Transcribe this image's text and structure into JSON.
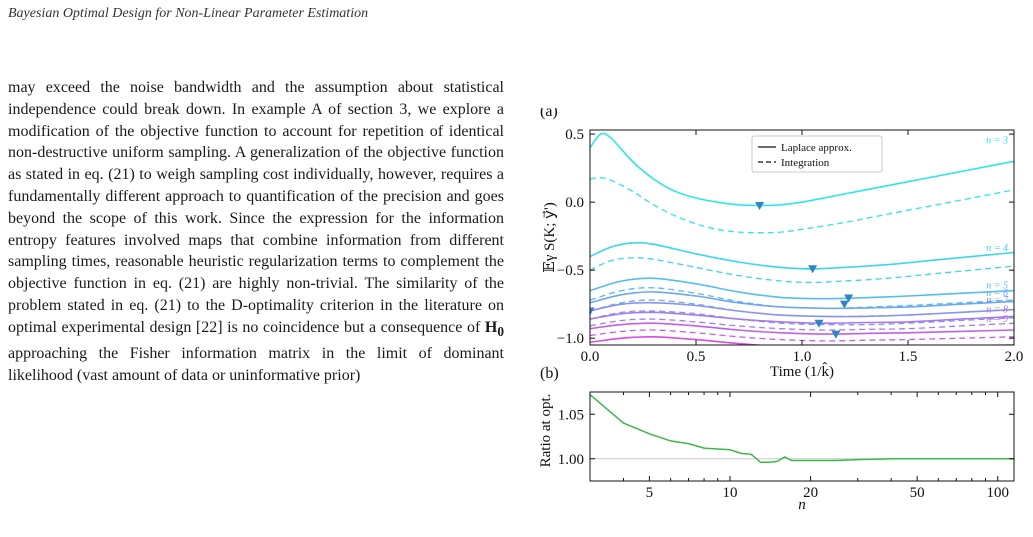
{
  "header": {
    "running_title": "Bayesian Optimal Design for Non-Linear Parameter Estimation"
  },
  "body": {
    "paragraph": [
      "may exceed the noise bandwidth and the assumption about statistical independence could break down. In example A of section 3, we explore a modification of the objective function to account for repetition of identical non-destructive uniform sampling. A generalization of the objective function as stated in eq. (21) to weigh sampling cost individually, however, requires a fundamentally different approach to quantification of the precision and goes beyond the scope of this work. Since the expression for the information entropy features involved maps that combine information from different sampling times, reasonable heuristic regularization terms to complement the objective function in eq. (21) are highly non-trivial. The similarity of the problem stated in eq. (21) to the D-optimality criterion in the literature on optimal experimental design [22] is no coincidence but a consequence of ",
      "H",
      " approaching the Fisher information matrix in the limit of dominant likelihood (vast amount of data or uninformative prior)"
    ]
  },
  "chart_data": [
    {
      "type": "line",
      "panel_label": "(a)",
      "xlabel": "Time (1/k̂)",
      "ylabel": "𝔼γ S(K; y⃗')",
      "xlim": [
        0.0,
        2.0
      ],
      "ylim": [
        -1.05,
        0.53
      ],
      "xticks": [
        "0.0",
        "0.5",
        "1.0",
        "1.5",
        "2.0"
      ],
      "yticks": [
        "0.5",
        "0.0",
        "−0.5",
        "−1.0"
      ],
      "legend": {
        "position": "top-center",
        "entries": [
          "Laplace approx.",
          "Integration"
        ]
      },
      "series": [
        {
          "name": "n = 3",
          "color": "#2ee6ea",
          "laplace": [
            [
              0.0,
              0.4
            ],
            [
              0.05,
              0.5
            ],
            [
              0.1,
              0.47
            ],
            [
              0.2,
              0.3
            ],
            [
              0.3,
              0.17
            ],
            [
              0.4,
              0.08
            ],
            [
              0.5,
              0.03
            ],
            [
              0.6,
              0.0
            ],
            [
              0.7,
              -0.02
            ],
            [
              0.8,
              -0.025
            ],
            [
              0.9,
              -0.02
            ],
            [
              1.0,
              0.0
            ],
            [
              1.2,
              0.06
            ],
            [
              1.4,
              0.12
            ],
            [
              1.6,
              0.18
            ],
            [
              1.8,
              0.24
            ],
            [
              2.0,
              0.3
            ]
          ],
          "integration": [
            [
              0.0,
              0.17
            ],
            [
              0.05,
              0.18
            ],
            [
              0.1,
              0.16
            ],
            [
              0.2,
              0.08
            ],
            [
              0.3,
              -0.02
            ],
            [
              0.4,
              -0.1
            ],
            [
              0.5,
              -0.16
            ],
            [
              0.6,
              -0.2
            ],
            [
              0.7,
              -0.22
            ],
            [
              0.8,
              -0.225
            ],
            [
              0.9,
              -0.22
            ],
            [
              1.0,
              -0.2
            ],
            [
              1.2,
              -0.15
            ],
            [
              1.4,
              -0.09
            ],
            [
              1.6,
              -0.03
            ],
            [
              1.8,
              0.03
            ],
            [
              2.0,
              0.09
            ]
          ],
          "optimum": [
            0.8,
            -0.025
          ]
        },
        {
          "name": "n = 4",
          "color": "#3bd5f0",
          "laplace": [
            [
              0.0,
              -0.4
            ],
            [
              0.1,
              -0.33
            ],
            [
              0.2,
              -0.3
            ],
            [
              0.3,
              -0.31
            ],
            [
              0.5,
              -0.38
            ],
            [
              0.7,
              -0.44
            ],
            [
              0.9,
              -0.48
            ],
            [
              1.05,
              -0.49
            ],
            [
              1.2,
              -0.48
            ],
            [
              1.4,
              -0.46
            ],
            [
              1.6,
              -0.43
            ],
            [
              1.8,
              -0.4
            ],
            [
              2.0,
              -0.37
            ]
          ],
          "integration": [
            [
              0.0,
              -0.5
            ],
            [
              0.1,
              -0.43
            ],
            [
              0.2,
              -0.41
            ],
            [
              0.3,
              -0.42
            ],
            [
              0.5,
              -0.48
            ],
            [
              0.7,
              -0.54
            ],
            [
              0.9,
              -0.58
            ],
            [
              1.05,
              -0.59
            ],
            [
              1.2,
              -0.58
            ],
            [
              1.4,
              -0.56
            ],
            [
              1.6,
              -0.53
            ],
            [
              1.8,
              -0.5
            ],
            [
              2.0,
              -0.47
            ]
          ],
          "optimum": [
            1.05,
            -0.49
          ]
        },
        {
          "name": "n = 5",
          "color": "#56bcf2",
          "laplace": [
            [
              0.0,
              -0.65
            ],
            [
              0.15,
              -0.58
            ],
            [
              0.3,
              -0.56
            ],
            [
              0.5,
              -0.6
            ],
            [
              0.7,
              -0.66
            ],
            [
              0.9,
              -0.7
            ],
            [
              1.1,
              -0.71
            ],
            [
              1.25,
              -0.705
            ],
            [
              1.5,
              -0.69
            ],
            [
              1.75,
              -0.67
            ],
            [
              2.0,
              -0.65
            ]
          ],
          "integration": [
            [
              0.0,
              -0.72
            ],
            [
              0.15,
              -0.65
            ],
            [
              0.3,
              -0.63
            ],
            [
              0.5,
              -0.67
            ],
            [
              0.7,
              -0.73
            ],
            [
              0.9,
              -0.77
            ],
            [
              1.1,
              -0.78
            ],
            [
              1.25,
              -0.775
            ],
            [
              1.5,
              -0.76
            ],
            [
              1.75,
              -0.74
            ],
            [
              2.0,
              -0.72
            ]
          ],
          "optimum": [
            1.22,
            -0.705
          ]
        },
        {
          "name": "n = 6",
          "color": "#6ea8f0",
          "laplace": [
            [
              0.0,
              -0.74
            ],
            [
              0.15,
              -0.68
            ],
            [
              0.3,
              -0.66
            ],
            [
              0.5,
              -0.69
            ],
            [
              0.7,
              -0.74
            ],
            [
              0.9,
              -0.77
            ],
            [
              1.1,
              -0.78
            ],
            [
              1.2,
              -0.78
            ],
            [
              1.5,
              -0.77
            ],
            [
              1.75,
              -0.75
            ],
            [
              2.0,
              -0.73
            ]
          ],
          "integration": [
            [
              0.0,
              -0.8
            ],
            [
              0.15,
              -0.74
            ],
            [
              0.3,
              -0.72
            ],
            [
              0.5,
              -0.75
            ],
            [
              0.7,
              -0.8
            ],
            [
              0.9,
              -0.83
            ],
            [
              1.1,
              -0.84
            ],
            [
              1.2,
              -0.84
            ],
            [
              1.5,
              -0.83
            ],
            [
              1.75,
              -0.81
            ],
            [
              2.0,
              -0.79
            ]
          ],
          "optimum": [
            1.2,
            -0.75
          ]
        },
        {
          "name": "n = 7",
          "color": "#8a93ee",
          "laplace": [
            [
              0.0,
              -0.8
            ],
            [
              0.15,
              -0.75
            ],
            [
              0.3,
              -0.74
            ],
            [
              0.5,
              -0.76
            ],
            [
              0.7,
              -0.8
            ],
            [
              0.9,
              -0.83
            ],
            [
              1.1,
              -0.84
            ],
            [
              1.3,
              -0.84
            ],
            [
              1.5,
              -0.83
            ],
            [
              1.75,
              -0.81
            ],
            [
              2.0,
              -0.79
            ]
          ],
          "integration": [
            [
              0.0,
              -0.86
            ],
            [
              0.15,
              -0.81
            ],
            [
              0.3,
              -0.8
            ],
            [
              0.5,
              -0.82
            ],
            [
              0.7,
              -0.86
            ],
            [
              0.9,
              -0.89
            ],
            [
              1.1,
              -0.9
            ],
            [
              1.3,
              -0.9
            ],
            [
              1.5,
              -0.89
            ],
            [
              1.75,
              -0.87
            ],
            [
              2.0,
              -0.85
            ]
          ],
          "optimum": [
            0.0,
            -0.8
          ]
        },
        {
          "name": "n = 8",
          "color": "#a57cec",
          "laplace": [
            [
              0.0,
              -0.86
            ],
            [
              0.15,
              -0.82
            ],
            [
              0.3,
              -0.81
            ],
            [
              0.5,
              -0.83
            ],
            [
              0.7,
              -0.86
            ],
            [
              0.9,
              -0.88
            ],
            [
              1.1,
              -0.89
            ],
            [
              1.3,
              -0.885
            ],
            [
              1.5,
              -0.88
            ],
            [
              1.75,
              -0.86
            ],
            [
              2.0,
              -0.84
            ]
          ],
          "integration": [
            [
              0.0,
              -0.91
            ],
            [
              0.15,
              -0.87
            ],
            [
              0.3,
              -0.86
            ],
            [
              0.5,
              -0.88
            ],
            [
              0.7,
              -0.91
            ],
            [
              0.9,
              -0.93
            ],
            [
              1.1,
              -0.94
            ],
            [
              1.3,
              -0.935
            ],
            [
              1.5,
              -0.93
            ],
            [
              1.75,
              -0.91
            ],
            [
              2.0,
              -0.89
            ]
          ],
          "optimum": [
            1.08,
            -0.89
          ]
        },
        {
          "name": "n = 9",
          "color": "#c060ea",
          "laplace": [
            [
              0.0,
              -0.93
            ],
            [
              0.15,
              -0.9
            ],
            [
              0.3,
              -0.89
            ],
            [
              0.5,
              -0.91
            ],
            [
              0.7,
              -0.94
            ],
            [
              0.9,
              -0.96
            ],
            [
              1.1,
              -0.97
            ],
            [
              1.3,
              -0.965
            ],
            [
              1.5,
              -0.96
            ],
            [
              1.75,
              -0.95
            ],
            [
              2.0,
              -0.94
            ]
          ],
          "integration": [
            [
              0.0,
              -0.98
            ],
            [
              0.15,
              -0.95
            ],
            [
              0.3,
              -0.94
            ],
            [
              0.5,
              -0.96
            ],
            [
              0.7,
              -0.99
            ],
            [
              0.9,
              -1.01
            ],
            [
              1.1,
              -1.02
            ],
            [
              1.3,
              -1.015
            ],
            [
              1.5,
              -1.01
            ],
            [
              1.75,
              -1.0
            ],
            [
              2.0,
              -0.99
            ]
          ],
          "optimum": [
            1.16,
            -0.97
          ]
        },
        {
          "name": "",
          "color": "#d84ce8",
          "laplace": [
            [
              0.0,
              -1.03
            ],
            [
              0.15,
              -1.0
            ],
            [
              0.3,
              -0.99
            ],
            [
              0.5,
              -1.01
            ],
            [
              0.7,
              -1.04
            ],
            [
              0.9,
              -1.06
            ],
            [
              1.2,
              -1.07
            ],
            [
              1.5,
              -1.06
            ],
            [
              2.0,
              -1.05
            ]
          ],
          "integration": [],
          "optimum": null
        }
      ]
    },
    {
      "type": "line",
      "panel_label": "(b)",
      "xlabel": "n",
      "ylabel": "Ratio at opt.",
      "xscale": "log",
      "xlim": [
        3,
        115
      ],
      "ylim": [
        0.975,
        1.075
      ],
      "xticks": [
        "5",
        "10",
        "20",
        "50",
        "100"
      ],
      "yticks": [
        "1.05",
        "1.00"
      ],
      "color": "#3cb84a",
      "reference_line": 1.0,
      "x": [
        3,
        4,
        5,
        6,
        7,
        8,
        9,
        10,
        11,
        12,
        13,
        14,
        15,
        16,
        17,
        18,
        20,
        25,
        30,
        40,
        50,
        70,
        100,
        115
      ],
      "values": [
        1.072,
        1.04,
        1.028,
        1.02,
        1.017,
        1.012,
        1.011,
        1.01,
        1.006,
        1.005,
        0.996,
        0.996,
        0.997,
        1.002,
        0.998,
        0.998,
        0.998,
        0.998,
        0.999,
        1.0,
        1.0,
        1.0,
        1.0,
        1.0
      ]
    }
  ]
}
